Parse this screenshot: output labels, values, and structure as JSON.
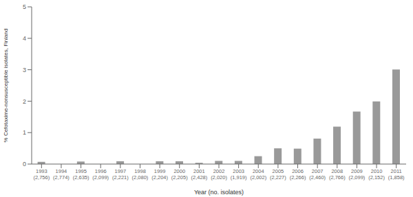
{
  "chart_data": {
    "type": "bar",
    "categories": [
      "1993\n(2,756)",
      "1994\n(2,774)",
      "1995\n(2,635)",
      "1996\n(2,099)",
      "1997\n(2,221)",
      "1998\n(2,080)",
      "1999\n(2,204)",
      "2000\n(2,205)",
      "2001\n(2,428)",
      "2002\n(2,020)",
      "2003\n(1,919)",
      "2004\n(2,002)",
      "2005\n(2,227)",
      "2006\n(2,266)",
      "2007\n(2,460)",
      "2008\n(2,766)",
      "2009\n(2,099)",
      "2010\n(2,152)",
      "2011\n(1,858)"
    ],
    "values": [
      0.07,
      0.0,
      0.08,
      0.0,
      0.09,
      0.0,
      0.09,
      0.09,
      0.04,
      0.1,
      0.1,
      0.25,
      0.5,
      0.49,
      0.81,
      1.19,
      1.67,
      1.99,
      3.01
    ],
    "color": "#999999",
    "xlabel": "Year (no. isolates)",
    "ylabel": "% Cefotaxime-nonsusceptible isolates, Finland",
    "ylim": [
      0,
      5
    ],
    "yticks": [
      0,
      1,
      2,
      3,
      4,
      5
    ],
    "grid": false
  }
}
